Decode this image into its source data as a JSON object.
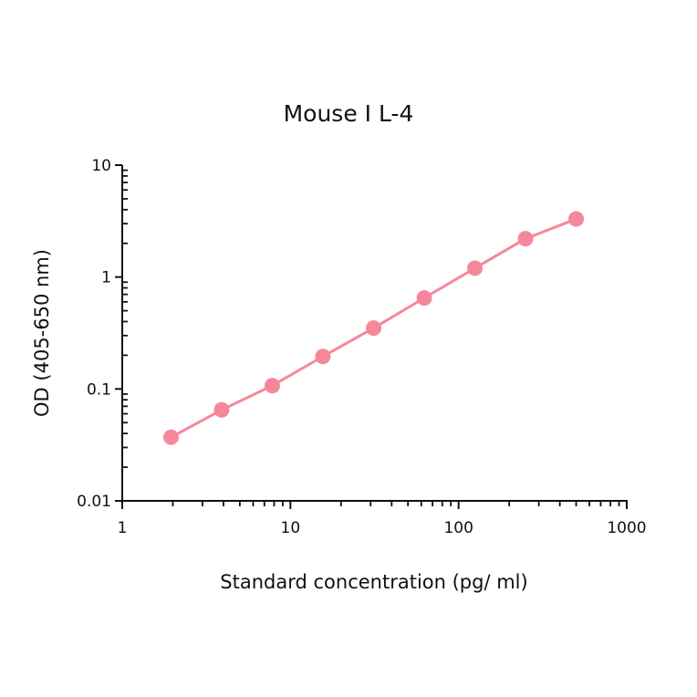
{
  "chart_data": {
    "type": "line",
    "title": "Mouse IL-4",
    "xlabel": "Standard concentration (pg/ml)",
    "ylabel": "OD (405-650 nm)",
    "xscale": "log",
    "yscale": "log",
    "xlim": [
      1,
      1000
    ],
    "ylim": [
      0.01,
      10
    ],
    "x_ticks": [
      "1",
      "10",
      "100",
      "1000"
    ],
    "y_ticks": [
      "0.01",
      "0.1",
      "1",
      "10"
    ],
    "grid": false,
    "legend": null,
    "series": [
      {
        "name": "Mouse IL-4",
        "color": "#f4889a",
        "marker": "circle",
        "x": [
          1.95,
          3.9,
          7.8,
          15.6,
          31.25,
          62.5,
          125,
          250,
          500
        ],
        "y": [
          0.037,
          0.065,
          0.107,
          0.195,
          0.35,
          0.65,
          1.2,
          2.2,
          3.3
        ]
      }
    ]
  },
  "labels": {
    "title": "Mouse I L-4",
    "xlabel": "Standard concentration (pg/ ml)",
    "ylabel": "OD (405-650 nm)"
  }
}
